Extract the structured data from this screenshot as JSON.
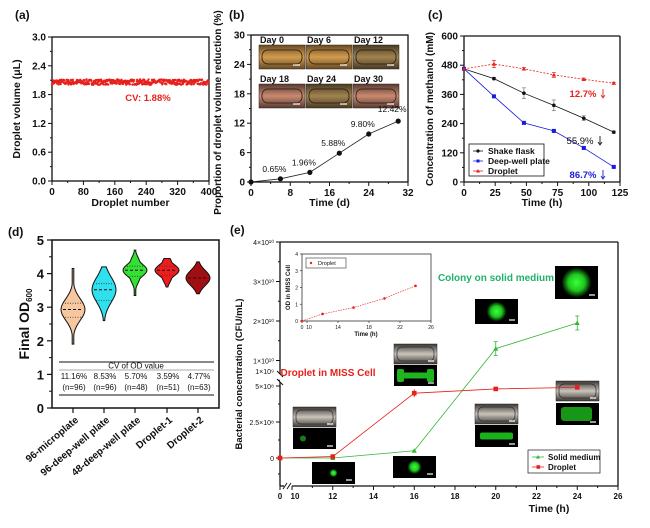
{
  "chart_data": [
    {
      "id": "a",
      "panel_label": "(a)",
      "type": "scatter",
      "xlabel": "Droplet number",
      "ylabel": "Droplet volume (μL)",
      "xlim": [
        0,
        400
      ],
      "ylim": [
        0,
        3.0
      ],
      "xticks": [
        "0",
        "80",
        "160",
        "240",
        "320",
        "400"
      ],
      "yticks": [
        "0.0",
        "0.6",
        "1.2",
        "1.8",
        "2.4",
        "3.0"
      ],
      "series": [
        {
          "name": "Droplet volume",
          "n_points": 400,
          "mean": 2.06,
          "cv_percent": 1.88,
          "color": "#e8201c"
        }
      ],
      "annotation": "CV: 1.88%"
    },
    {
      "id": "b",
      "panel_label": "(b)",
      "type": "line",
      "xlabel": "Time (d)",
      "ylabel": "Proportion of droplet volume reduction (%)",
      "xlim": [
        0,
        32
      ],
      "ylim": [
        0,
        30
      ],
      "xticks": [
        "0",
        "8",
        "16",
        "24",
        "32"
      ],
      "yticks": [
        "0",
        "6",
        "12",
        "18",
        "24",
        "30"
      ],
      "x": [
        0,
        6,
        12,
        18,
        24,
        30
      ],
      "values": [
        0,
        0.65,
        1.96,
        5.88,
        9.8,
        12.42
      ],
      "data_labels": [
        "",
        "0.65%",
        "1.96%",
        "5.88%",
        "9.80%",
        "12.42%"
      ],
      "inset_images": [
        "Day 0",
        "Day 6",
        "Day 12",
        "Day 18",
        "Day 24",
        "Day 30"
      ]
    },
    {
      "id": "c",
      "panel_label": "(c)",
      "type": "line",
      "xlabel": "Time (h)",
      "ylabel": "Concentration of methanol (mM)",
      "xlim": [
        0,
        125
      ],
      "ylim": [
        0,
        600
      ],
      "xticks": [
        "0",
        "25",
        "50",
        "75",
        "100",
        "125"
      ],
      "yticks": [
        "0",
        "120",
        "240",
        "360",
        "480",
        "600"
      ],
      "x": [
        0,
        24,
        48,
        72,
        96,
        120
      ],
      "legend_position": "bottom-left",
      "series": [
        {
          "name": "Shake flask",
          "values": [
            465,
            425,
            365,
            315,
            262,
            205
          ],
          "errors": [
            0,
            5,
            22,
            22,
            10,
            5
          ],
          "color": "#111111",
          "annotation": "55.9%"
        },
        {
          "name": "Deep-well plate",
          "values": [
            465,
            352,
            243,
            210,
            140,
            62
          ],
          "errors": [
            0,
            4,
            5,
            6,
            4,
            4
          ],
          "color": "#1a1adf",
          "annotation": "86.7%"
        },
        {
          "name": "Droplet",
          "values": [
            465,
            485,
            465,
            440,
            422,
            406
          ],
          "errors": [
            0,
            15,
            5,
            10,
            5,
            4
          ],
          "color": "#e8201c",
          "annotation": "12.7%"
        }
      ]
    },
    {
      "id": "d",
      "panel_label": "(d)",
      "type": "violin",
      "ylabel": "Final OD600",
      "ylim": [
        0,
        5
      ],
      "yticks": [
        "0",
        "1",
        "2",
        "3",
        "4",
        "5"
      ],
      "categories": [
        "96-microplate",
        "96-deep-well plate",
        "48-deep-well plate",
        "Droplet-1",
        "Droplet-2"
      ],
      "medians": [
        2.93,
        3.52,
        4.1,
        4.1,
        3.87
      ],
      "q1": [
        2.7,
        3.2,
        3.92,
        3.95,
        3.72
      ],
      "q3": [
        3.12,
        3.7,
        4.22,
        4.22,
        4.0
      ],
      "min": [
        1.9,
        2.6,
        3.35,
        3.6,
        3.4
      ],
      "max": [
        4.15,
        4.2,
        4.7,
        4.45,
        4.35
      ],
      "colors": [
        "#f7c8a0",
        "#2fe0ee",
        "#33e033",
        "#ee1c1c",
        "#a50d10"
      ],
      "table_title": "CV of OD value",
      "cv_values": [
        "11.16%",
        "8.53%",
        "5.70%",
        "3.59%",
        "4.77%"
      ],
      "n_values": [
        "(n=96)",
        "(n=96)",
        "(n=48)",
        "(n=51)",
        "(n=63)"
      ]
    },
    {
      "id": "e",
      "panel_label": "(e)",
      "type": "line",
      "xlabel": "Time (h)",
      "ylabel": "Bacterial concentration (CFU/mL)",
      "xticks": [
        "0",
        "10",
        "12",
        "14",
        "16",
        "18",
        "20",
        "22",
        "24",
        "26"
      ],
      "yticks_lower": [
        "0",
        "2.5×10⁸",
        "5×10⁸"
      ],
      "yticks_upper": [
        "1×10⁹",
        "1×10¹⁰",
        "2×10¹⁰",
        "3×10¹⁰",
        "4×10¹⁰"
      ],
      "axis_break": true,
      "legend_position": "bottom-right",
      "series": [
        {
          "name": "Solid medium",
          "x": [
            0,
            12,
            16,
            20,
            24
          ],
          "values": [
            0,
            0,
            50000000.0,
            13000000000.0,
            19500000000.0
          ],
          "color": "#33b533"
        },
        {
          "name": "Droplet",
          "x": [
            0,
            12,
            16,
            20,
            24
          ],
          "values": [
            0,
            10000000.0,
            450000000.0,
            2800000000.0,
            3200000000.0
          ],
          "color": "#e8201c"
        }
      ],
      "annotations": [
        "Droplet in MISS Cell",
        "Colony on solid medium"
      ],
      "inset": {
        "type": "line",
        "xlabel": "Time (h)",
        "ylabel": "OD in MISS Cell",
        "xticks": [
          "0",
          "10",
          "14",
          "18",
          "22",
          "26"
        ],
        "yticks": [
          "0",
          "1",
          "2",
          "3",
          "4"
        ],
        "series": [
          {
            "name": "Droplet",
            "x": [
              0,
              12,
              16,
              20,
              24
            ],
            "values": [
              0,
              0.42,
              0.8,
              1.35,
              2.1
            ],
            "color": "#e8201c"
          }
        ]
      }
    }
  ]
}
